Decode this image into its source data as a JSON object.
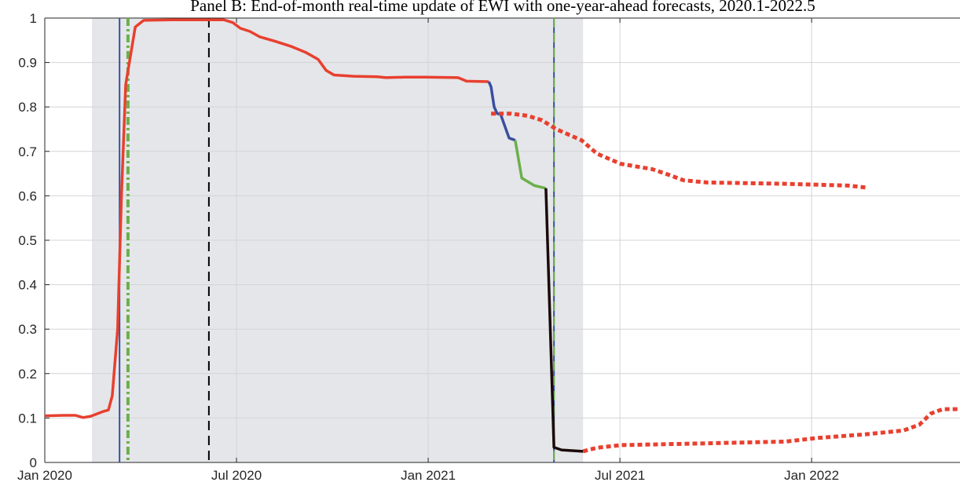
{
  "chart_data": {
    "type": "line",
    "title": "Panel B: End-of-month real-time update of EWI with one-year-ahead forecasts, 2020.1-2022.5",
    "xlim": [
      2020.0,
      2022.387
    ],
    "xticks": [
      {
        "value": 2020.0,
        "label": "Jan 2020"
      },
      {
        "value": 2020.5,
        "label": "Jul 2020"
      },
      {
        "value": 2021.0,
        "label": "Jan 2021"
      },
      {
        "value": 2021.5,
        "label": "Jul 2021"
      },
      {
        "value": 2022.0,
        "label": "Jan 2022"
      }
    ],
    "ylim": [
      0,
      1
    ],
    "yticks": [
      0,
      0.1,
      0.2,
      0.3,
      0.4,
      0.5,
      0.6,
      0.7,
      0.8,
      0.9,
      1
    ],
    "grid": true,
    "shaded": [
      2020.123,
      2021.404
    ],
    "shade_color": "#e5e6e9",
    "vlines": [
      {
        "x": 2020.195,
        "color": "#3a4fa0",
        "style": "solid"
      },
      {
        "x": 2020.217,
        "color": "#6ab04c",
        "style": "dashdot"
      },
      {
        "x": 2020.428,
        "color": "#000000",
        "style": "dashed"
      },
      {
        "x": 2021.328,
        "color": "#3a4fa0",
        "style": "solid"
      },
      {
        "x": 2021.328,
        "color": "#6ab04c",
        "style": "dashed"
      }
    ],
    "series": [
      {
        "color": "#e8402f",
        "style": "solid",
        "x": [
          2020.0,
          2020.05,
          2020.08,
          2020.1,
          2020.12,
          2020.15,
          2020.166,
          2020.176,
          2020.19,
          2020.2,
          2020.211,
          2020.236,
          2020.258,
          2020.33,
          2020.467,
          2020.49,
          2020.51,
          2020.535,
          2020.56,
          2020.6,
          2020.64,
          2020.68,
          2020.713,
          2020.734,
          2020.754,
          2020.805,
          2020.867,
          2020.89,
          2020.94,
          2020.99,
          2021.078,
          2021.1,
          2021.158
        ],
        "values": [
          0.105,
          0.106,
          0.106,
          0.101,
          0.104,
          0.114,
          0.118,
          0.15,
          0.3,
          0.6,
          0.85,
          0.98,
          0.995,
          0.996,
          0.996,
          0.99,
          0.977,
          0.97,
          0.958,
          0.948,
          0.937,
          0.923,
          0.907,
          0.882,
          0.872,
          0.869,
          0.868,
          0.866,
          0.867,
          0.867,
          0.866,
          0.858,
          0.857
        ]
      },
      {
        "color": "#3a4fa0",
        "style": "solid",
        "x": [
          2021.158,
          2021.164,
          2021.172,
          2021.18,
          2021.189,
          2021.211,
          2021.227
        ],
        "values": [
          0.857,
          0.845,
          0.8,
          0.785,
          0.783,
          0.73,
          0.725
        ]
      },
      {
        "color": "#6ab04c",
        "style": "solid",
        "x": [
          2021.227,
          2021.244,
          2021.277,
          2021.307
        ],
        "values": [
          0.725,
          0.64,
          0.623,
          0.617
        ]
      },
      {
        "color": "#1a0a0a",
        "style": "solid",
        "x": [
          2021.307,
          2021.328,
          2021.348,
          2021.404
        ],
        "values": [
          0.617,
          0.034,
          0.028,
          0.025
        ]
      },
      {
        "color": "#e8402f",
        "style": "dotted",
        "x": [
          2021.164,
          2021.215,
          2021.26,
          2021.297,
          2021.334,
          2021.4,
          2021.44,
          2021.502,
          2021.584,
          2021.625,
          2021.666,
          2021.727,
          2021.932,
          2022.096,
          2022.148
        ],
        "values": [
          0.785,
          0.785,
          0.78,
          0.77,
          0.75,
          0.725,
          0.695,
          0.672,
          0.66,
          0.648,
          0.635,
          0.63,
          0.627,
          0.623,
          0.618
        ]
      },
      {
        "color": "#e8402f",
        "style": "dotted",
        "x": [
          2021.404,
          2021.44,
          2021.502,
          2021.727,
          2021.932,
          2022.014,
          2022.137,
          2022.24,
          2022.281,
          2022.311,
          2022.342,
          2022.387
        ],
        "values": [
          0.025,
          0.033,
          0.039,
          0.043,
          0.047,
          0.055,
          0.063,
          0.072,
          0.085,
          0.11,
          0.12,
          0.12
        ]
      }
    ]
  }
}
